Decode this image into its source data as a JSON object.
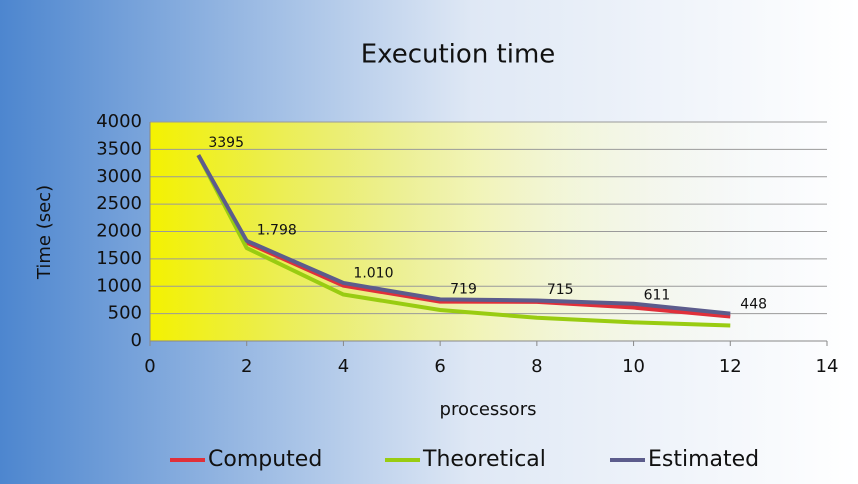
{
  "chart_data": {
    "type": "line",
    "title": "Execution time",
    "x_label": "processors",
    "y_label": "Time (sec)",
    "x": [
      1,
      2,
      4,
      6,
      8,
      10,
      12
    ],
    "series": [
      {
        "name": "Computed",
        "color": "#e0303a",
        "values": [
          3395,
          1798,
          1010,
          719,
          715,
          611,
          448
        ],
        "value_labels": [
          "3395",
          "1.798",
          "1.010",
          "719",
          "715",
          "611",
          "448"
        ]
      },
      {
        "name": "Theoretical",
        "color": "#99cc11",
        "values": [
          3395,
          1698,
          849,
          566,
          424,
          340,
          283
        ]
      },
      {
        "name": "Estimated",
        "color": "#5c5c8c",
        "values": [
          3395,
          1830,
          1060,
          760,
          740,
          680,
          500
        ]
      }
    ],
    "xlim": [
      0,
      14
    ],
    "xticks": [
      0,
      2,
      4,
      6,
      8,
      10,
      12,
      14
    ],
    "ylim": [
      0,
      4000
    ],
    "yticks": [
      0,
      500,
      1000,
      1500,
      2000,
      2500,
      3000,
      3500,
      4000
    ],
    "grid": true,
    "legend": "bottom"
  }
}
